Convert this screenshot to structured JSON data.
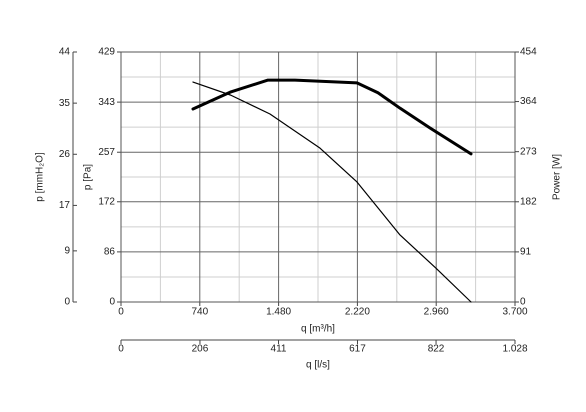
{
  "chart_data": {
    "type": "line",
    "xlabel": "q [m³/h]",
    "xlim": [
      0,
      3700
    ],
    "xticks": [
      0,
      740,
      {
        "value": 1480,
        "label": "1.480"
      },
      {
        "value": 2220,
        "label": "2.220"
      },
      {
        "value": 2960,
        "label": "2.960"
      },
      {
        "value": 3700,
        "label": "3.700"
      }
    ],
    "x2label": "q [l/s]",
    "x2lim": [
      0,
      1028
    ],
    "x2ticks": [
      0,
      206,
      411,
      617,
      822,
      {
        "value": 1028,
        "label": "1.028"
      }
    ],
    "ylabel": "p [Pa]",
    "ylim": [
      0,
      429
    ],
    "yticks": [
      0,
      86,
      172,
      257,
      343,
      429
    ],
    "y2label": "Power [W]",
    "y2lim": [
      0,
      454
    ],
    "y2ticks": [
      0,
      91,
      182,
      273,
      364,
      454
    ],
    "y3label": "p [mmH₂O]",
    "y3lim": [
      0,
      44
    ],
    "y3ticks": [
      0,
      9,
      17,
      26,
      35,
      44
    ],
    "grid": true,
    "minor_grid": true,
    "series": [
      {
        "axis": "y",
        "color": "#000000",
        "width": 1.2,
        "x": [
          676,
          1030,
          1399,
          1869,
          2216,
          2620,
          2958,
          3287
        ],
        "values": [
          377.5,
          355,
          322.6,
          264,
          206,
          115,
          58,
          0
        ]
      },
      {
        "axis": "y2",
        "color": "#000000",
        "width": 3,
        "x": [
          676,
          1024,
          1380,
          1634,
          2216,
          2413,
          2620,
          2902,
          3287
        ],
        "values": [
          350.5,
          381,
          403,
          403,
          398,
          380,
          352,
          316,
          269
        ]
      }
    ]
  }
}
